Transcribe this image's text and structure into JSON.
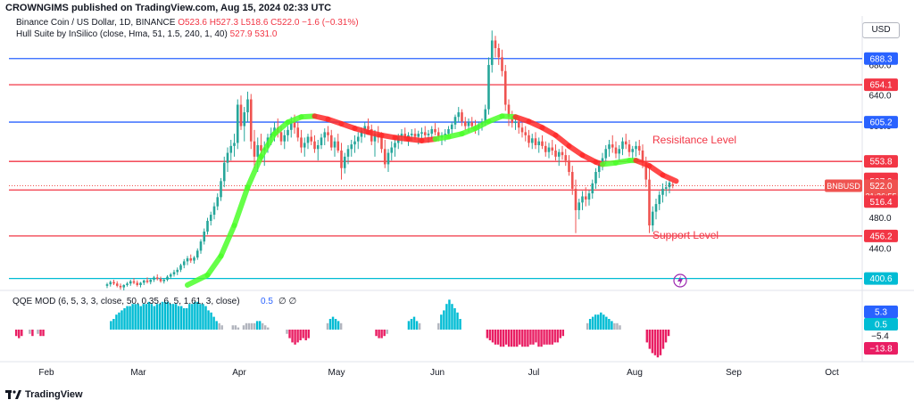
{
  "header": {
    "publisher_line": "CROWNGIMS published on TradingView.com, Aug 15, 2024 02:33 UTC"
  },
  "legend": {
    "symbol_line": "Binance Coin / US Dollar, 1D, BINANCE",
    "ohlc": "O523.6 H527.3 L518.6 C522.0 −1.6 (−0.31%)",
    "indicator_name": "Hull Suite by InSilico (close, Hma, 51, 1.5, 240, 1, 40)",
    "indicator_values": "527.9 531.0",
    "qqe_name": "QQE MOD (6, 5, 3, 3, close, 50, 0.35, 6, 5, 1.61, 3, close)",
    "qqe_value": "0.5",
    "qqe_symbols": "∅ ∅"
  },
  "currency": "USD",
  "footer": {
    "brand": "TradingView"
  },
  "annotations": {
    "resistance": "Resisitance Level",
    "support": "Support Level"
  },
  "colors": {
    "up": "#26a69a",
    "down": "#ef5350",
    "blue_line": "#2962ff",
    "red_line": "#f23645",
    "cyan_line": "#00bcd4",
    "hull_up": "#4cff2a",
    "hull_down": "#ff2a2a",
    "qqe_up": "#00bcd4",
    "qqe_down": "#e91e63",
    "qqe_neutral": "#b2b5be"
  },
  "chart_data": {
    "type": "candlestick",
    "title": "Binance Coin / US Dollar, 1D, BINANCE",
    "y_ticks": [
      440.0,
      480.0,
      600.0,
      640.0,
      680.0
    ],
    "ylim": [
      385,
      730
    ],
    "x_ticks": [
      "Feb",
      "Mar",
      "Apr",
      "May",
      "Jun",
      "Jul",
      "Aug",
      "Sep",
      "Oct"
    ],
    "last_price_label": "BNBUSD",
    "last_price": "522.0",
    "countdown": "21:26:55",
    "horizontal_levels": [
      {
        "value": 688.3,
        "label": "688.3",
        "color": "#2962ff"
      },
      {
        "value": 654.1,
        "label": "654.1",
        "color": "#f23645"
      },
      {
        "value": 605.2,
        "label": "605.2",
        "color": "#2962ff"
      },
      {
        "value": 553.8,
        "label": "553.8",
        "color": "#f23645"
      },
      {
        "value": 516.4,
        "label": "516.4",
        "color": "#f23645"
      },
      {
        "value": 456.2,
        "label": "456.2",
        "color": "#f23645"
      },
      {
        "value": 400.6,
        "label": "400.6",
        "color": "#00bcd4"
      }
    ],
    "price_axis_badges": [
      {
        "value": 531.0,
        "label": "531.0",
        "color": "#f23645"
      },
      {
        "value": 527.9,
        "label": "527.9",
        "color": "#f23645"
      },
      {
        "value": 516.4,
        "label": "516.4",
        "color": "#f23645"
      }
    ],
    "qqe": {
      "axis_labels": [
        "5.3",
        "0.5",
        "−5.4",
        "−13.8"
      ],
      "badges": [
        {
          "value": 5.3,
          "label": "5.3",
          "color": "#2962ff"
        },
        {
          "value": 0.5,
          "label": "0.5",
          "color": "#00bcd4"
        },
        {
          "value": -13.8,
          "label": "−13.8",
          "color": "#e91e63"
        }
      ],
      "bars": [
        -3,
        -4,
        -3,
        0,
        0,
        -2,
        -3,
        0,
        -2,
        -3,
        -3,
        0,
        0,
        0,
        0,
        0,
        0,
        0,
        0,
        0,
        0,
        0,
        0,
        0,
        0,
        0,
        0,
        0,
        0,
        0,
        0,
        0,
        0,
        0,
        0,
        4,
        5,
        7,
        8,
        9,
        10,
        11,
        11,
        12,
        12,
        12,
        11,
        12,
        12,
        13,
        12,
        11,
        12,
        12,
        13,
        13,
        13,
        12,
        12,
        12,
        11,
        11,
        10,
        10,
        12,
        12,
        13,
        13,
        12,
        12,
        11,
        9,
        8,
        6,
        4,
        3,
        2,
        0,
        0,
        0,
        2,
        2,
        1,
        0,
        2,
        3,
        3,
        3,
        3,
        4,
        4,
        3,
        2,
        1,
        0,
        0,
        0,
        0,
        0,
        0,
        -2,
        -4,
        -6,
        -7,
        -6,
        -5,
        -4,
        -5,
        -4,
        0,
        0,
        0,
        0,
        0,
        0,
        3,
        5,
        6,
        5,
        4,
        3,
        0,
        0,
        0,
        0,
        0,
        0,
        0,
        0,
        0,
        0,
        0,
        0,
        -3,
        -4,
        -4,
        -3,
        -2,
        0,
        0,
        0,
        0,
        0,
        0,
        0,
        4,
        5,
        6,
        4,
        3,
        0,
        0,
        0,
        0,
        0,
        0,
        3,
        7,
        9,
        12,
        14,
        12,
        10,
        8,
        5,
        0,
        0,
        0,
        0,
        0,
        0,
        0,
        0,
        0,
        -4,
        -5,
        -6,
        -7,
        -7,
        -8,
        -8,
        -7,
        -8,
        -8,
        -8,
        -8,
        -7,
        -8,
        -8,
        -8,
        -7,
        -7,
        -6,
        -8,
        -8,
        -7,
        -7,
        -7,
        -7,
        -6,
        -6,
        -4,
        -3,
        0,
        0,
        0,
        0,
        0,
        0,
        0,
        0,
        3,
        5,
        6,
        7,
        7,
        8,
        7,
        6,
        5,
        4,
        3,
        3,
        2,
        0,
        0,
        0,
        0,
        0,
        0,
        0,
        0,
        0,
        -6,
        -9,
        -11,
        -12,
        -13,
        -12,
        -9,
        -6,
        -3,
        0,
        0,
        0
      ]
    },
    "candles": [
      [
        391,
        395,
        388,
        393
      ],
      [
        393,
        398,
        390,
        396
      ],
      [
        396,
        399,
        392,
        394
      ],
      [
        394,
        397,
        389,
        391
      ],
      [
        391,
        394,
        386,
        389
      ],
      [
        389,
        393,
        385,
        392
      ],
      [
        392,
        396,
        390,
        394
      ],
      [
        394,
        399,
        391,
        397
      ],
      [
        397,
        401,
        393,
        395
      ],
      [
        395,
        398,
        390,
        392
      ],
      [
        392,
        396,
        389,
        395
      ],
      [
        395,
        399,
        392,
        398
      ],
      [
        398,
        402,
        394,
        396
      ],
      [
        396,
        400,
        393,
        399
      ],
      [
        399,
        404,
        396,
        402
      ],
      [
        402,
        406,
        398,
        400
      ],
      [
        400,
        403,
        395,
        397
      ],
      [
        397,
        401,
        394,
        399
      ],
      [
        399,
        405,
        397,
        403
      ],
      [
        403,
        408,
        400,
        406
      ],
      [
        406,
        412,
        403,
        409
      ],
      [
        409,
        415,
        405,
        412
      ],
      [
        412,
        420,
        409,
        418
      ],
      [
        418,
        426,
        414,
        423
      ],
      [
        423,
        430,
        418,
        427
      ],
      [
        427,
        432,
        421,
        424
      ],
      [
        424,
        430,
        420,
        428
      ],
      [
        428,
        440,
        425,
        437
      ],
      [
        437,
        452,
        433,
        449
      ],
      [
        449,
        466,
        445,
        462
      ],
      [
        462,
        480,
        458,
        476
      ],
      [
        476,
        488,
        470,
        484
      ],
      [
        484,
        500,
        478,
        495
      ],
      [
        495,
        512,
        490,
        507
      ],
      [
        507,
        532,
        502,
        528
      ],
      [
        528,
        560,
        520,
        552
      ],
      [
        552,
        572,
        540,
        565
      ],
      [
        565,
        582,
        555,
        574
      ],
      [
        574,
        590,
        560,
        578
      ],
      [
        578,
        635,
        570,
        628
      ],
      [
        628,
        640,
        595,
        600
      ],
      [
        600,
        625,
        580,
        618
      ],
      [
        618,
        645,
        605,
        635
      ],
      [
        635,
        642,
        570,
        580
      ],
      [
        580,
        595,
        545,
        560
      ],
      [
        560,
        585,
        540,
        575
      ],
      [
        575,
        590,
        555,
        568
      ],
      [
        568,
        580,
        548,
        572
      ],
      [
        572,
        590,
        565,
        585
      ],
      [
        585,
        598,
        575,
        590
      ],
      [
        590,
        605,
        580,
        598
      ],
      [
        598,
        610,
        585,
        592
      ],
      [
        592,
        600,
        575,
        580
      ],
      [
        580,
        595,
        570,
        588
      ],
      [
        588,
        600,
        580,
        595
      ],
      [
        595,
        612,
        585,
        605
      ],
      [
        605,
        615,
        590,
        598
      ],
      [
        598,
        605,
        580,
        585
      ],
      [
        585,
        595,
        565,
        572
      ],
      [
        572,
        585,
        560,
        578
      ],
      [
        578,
        590,
        570,
        586
      ],
      [
        586,
        595,
        575,
        580
      ],
      [
        580,
        588,
        565,
        570
      ],
      [
        570,
        582,
        555,
        575
      ],
      [
        575,
        590,
        570,
        585
      ],
      [
        585,
        597,
        575,
        592
      ],
      [
        592,
        600,
        580,
        588
      ],
      [
        588,
        595,
        568,
        572
      ],
      [
        572,
        585,
        560,
        580
      ],
      [
        580,
        590,
        565,
        568
      ],
      [
        568,
        578,
        530,
        545
      ],
      [
        545,
        565,
        538,
        560
      ],
      [
        560,
        575,
        550,
        570
      ],
      [
        570,
        582,
        560,
        576
      ],
      [
        576,
        588,
        565,
        580
      ],
      [
        580,
        592,
        570,
        586
      ],
      [
        586,
        598,
        578,
        594
      ],
      [
        594,
        605,
        585,
        600
      ],
      [
        600,
        610,
        590,
        596
      ],
      [
        596,
        602,
        575,
        580
      ],
      [
        580,
        595,
        560,
        590
      ],
      [
        590,
        600,
        578,
        585
      ],
      [
        585,
        592,
        565,
        570
      ],
      [
        570,
        582,
        545,
        550
      ],
      [
        550,
        570,
        540,
        565
      ],
      [
        565,
        580,
        555,
        572
      ],
      [
        572,
        585,
        560,
        578
      ],
      [
        578,
        590,
        570,
        586
      ],
      [
        586,
        596,
        576,
        590
      ],
      [
        590,
        598,
        580,
        584
      ],
      [
        584,
        592,
        574,
        588
      ],
      [
        588,
        596,
        580,
        590
      ],
      [
        590,
        597,
        582,
        586
      ],
      [
        586,
        594,
        576,
        590
      ],
      [
        590,
        598,
        582,
        592
      ],
      [
        592,
        600,
        584,
        588
      ],
      [
        588,
        595,
        578,
        590
      ],
      [
        590,
        600,
        583,
        596
      ],
      [
        596,
        604,
        588,
        592
      ],
      [
        592,
        598,
        580,
        585
      ],
      [
        585,
        592,
        575,
        588
      ],
      [
        588,
        596,
        580,
        590
      ],
      [
        590,
        600,
        584,
        596
      ],
      [
        596,
        606,
        590,
        602
      ],
      [
        602,
        615,
        596,
        612
      ],
      [
        612,
        625,
        605,
        618
      ],
      [
        618,
        622,
        600,
        606
      ],
      [
        606,
        612,
        595,
        600
      ],
      [
        600,
        610,
        592,
        605
      ],
      [
        605,
        612,
        596,
        600
      ],
      [
        600,
        608,
        590,
        598
      ],
      [
        598,
        606,
        588,
        602
      ],
      [
        602,
        610,
        594,
        606
      ],
      [
        606,
        628,
        600,
        622
      ],
      [
        622,
        690,
        615,
        680
      ],
      [
        680,
        725,
        670,
        712
      ],
      [
        712,
        718,
        690,
        702
      ],
      [
        702,
        708,
        680,
        690
      ],
      [
        690,
        700,
        665,
        672
      ],
      [
        672,
        680,
        620,
        628
      ],
      [
        628,
        635,
        600,
        612
      ],
      [
        612,
        620,
        598,
        604
      ],
      [
        604,
        612,
        595,
        606
      ],
      [
        606,
        612,
        590,
        598
      ],
      [
        598,
        605,
        585,
        592
      ],
      [
        592,
        600,
        580,
        588
      ],
      [
        588,
        595,
        572,
        578
      ],
      [
        578,
        590,
        570,
        584
      ],
      [
        584,
        592,
        570,
        575
      ],
      [
        575,
        585,
        565,
        580
      ],
      [
        580,
        588,
        570,
        574
      ],
      [
        574,
        580,
        560,
        566
      ],
      [
        566,
        578,
        558,
        572
      ],
      [
        572,
        582,
        562,
        568
      ],
      [
        568,
        576,
        555,
        560
      ],
      [
        560,
        570,
        548,
        566
      ],
      [
        566,
        574,
        556,
        562
      ],
      [
        562,
        570,
        548,
        555
      ],
      [
        555,
        562,
        535,
        540
      ],
      [
        540,
        548,
        510,
        518
      ],
      [
        518,
        530,
        460,
        490
      ],
      [
        490,
        505,
        478,
        500
      ],
      [
        500,
        515,
        490,
        508
      ],
      [
        508,
        520,
        495,
        504
      ],
      [
        504,
        516,
        496,
        512
      ],
      [
        512,
        530,
        505,
        525
      ],
      [
        525,
        545,
        518,
        540
      ],
      [
        540,
        555,
        532,
        550
      ],
      [
        550,
        565,
        542,
        558
      ],
      [
        558,
        575,
        550,
        570
      ],
      [
        570,
        582,
        560,
        576
      ],
      [
        576,
        588,
        565,
        572
      ],
      [
        572,
        580,
        558,
        564
      ],
      [
        564,
        575,
        555,
        570
      ],
      [
        570,
        585,
        562,
        580
      ],
      [
        580,
        590,
        570,
        576
      ],
      [
        576,
        582,
        560,
        566
      ],
      [
        566,
        574,
        556,
        570
      ],
      [
        570,
        580,
        560,
        574
      ],
      [
        574,
        582,
        562,
        568
      ],
      [
        568,
        576,
        545,
        552
      ],
      [
        552,
        560,
        520,
        530
      ],
      [
        530,
        545,
        460,
        470
      ],
      [
        470,
        495,
        462,
        488
      ],
      [
        488,
        505,
        478,
        498
      ],
      [
        498,
        515,
        490,
        510
      ],
      [
        510,
        525,
        500,
        518
      ],
      [
        518,
        528,
        508,
        520
      ],
      [
        520,
        530,
        512,
        526
      ],
      [
        523.6,
        527.3,
        518.6,
        522.0
      ]
    ],
    "hull": [
      [
        24,
        392,
        "up"
      ],
      [
        30,
        405,
        "up"
      ],
      [
        34,
        430,
        "up"
      ],
      [
        38,
        470,
        "up"
      ],
      [
        42,
        520,
        "up"
      ],
      [
        46,
        560,
        "up"
      ],
      [
        50,
        590,
        "up"
      ],
      [
        54,
        605,
        "up"
      ],
      [
        58,
        612,
        "up"
      ],
      [
        62,
        613,
        "down"
      ],
      [
        66,
        609,
        "down"
      ],
      [
        70,
        603,
        "down"
      ],
      [
        74,
        597,
        "down"
      ],
      [
        78,
        592,
        "down"
      ],
      [
        82,
        588,
        "down"
      ],
      [
        86,
        585,
        "down"
      ],
      [
        90,
        583,
        "down"
      ],
      [
        94,
        581,
        "down"
      ],
      [
        98,
        583,
        "up"
      ],
      [
        102,
        586,
        "up"
      ],
      [
        106,
        590,
        "up"
      ],
      [
        110,
        597,
        "up"
      ],
      [
        114,
        606,
        "up"
      ],
      [
        118,
        613,
        "up"
      ],
      [
        122,
        612,
        "down"
      ],
      [
        126,
        606,
        "down"
      ],
      [
        130,
        598,
        "down"
      ],
      [
        134,
        588,
        "down"
      ],
      [
        138,
        574,
        "down"
      ],
      [
        142,
        562,
        "down"
      ],
      [
        146,
        553,
        "down"
      ],
      [
        148,
        550,
        "up"
      ],
      [
        152,
        552,
        "up"
      ],
      [
        156,
        555,
        "up"
      ],
      [
        158,
        555,
        "down"
      ],
      [
        162,
        548,
        "down"
      ],
      [
        166,
        536,
        "down"
      ],
      [
        170,
        528,
        "down"
      ]
    ]
  }
}
